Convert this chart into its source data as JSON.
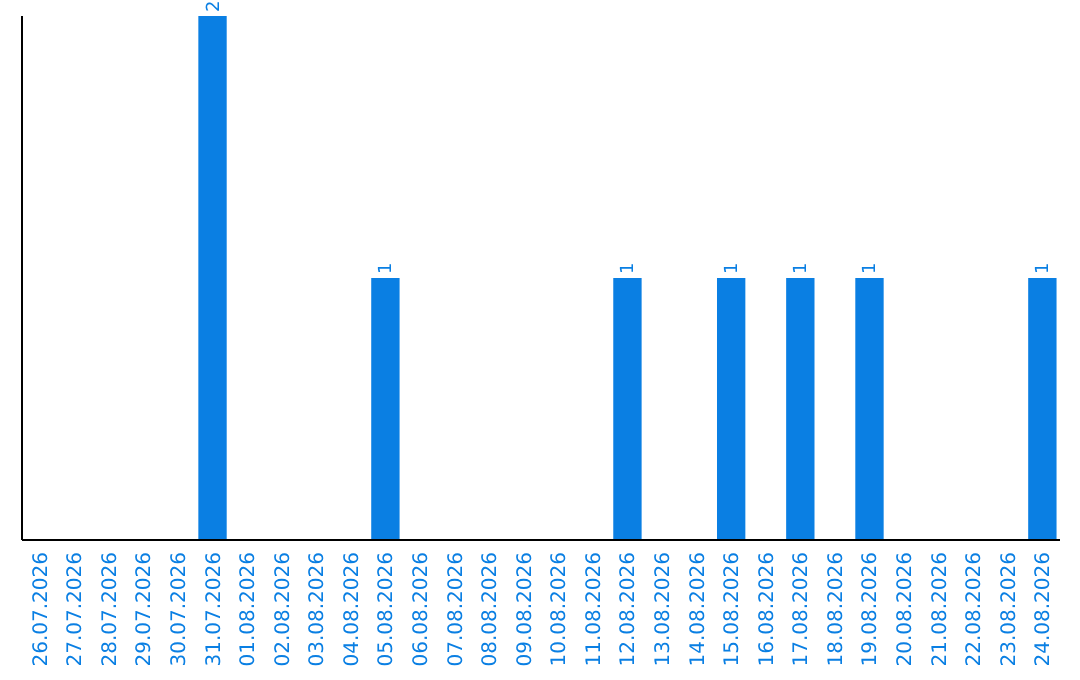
{
  "chart_data": {
    "type": "bar",
    "categories": [
      "26.07.2026",
      "27.07.2026",
      "28.07.2026",
      "29.07.2026",
      "30.07.2026",
      "31.07.2026",
      "01.08.2026",
      "02.08.2026",
      "03.08.2026",
      "04.08.2026",
      "05.08.2026",
      "06.08.2026",
      "07.08.2026",
      "08.08.2026",
      "09.08.2026",
      "10.08.2026",
      "11.08.2026",
      "12.08.2026",
      "13.08.2026",
      "14.08.2026",
      "15.08.2026",
      "16.08.2026",
      "17.08.2026",
      "18.08.2026",
      "19.08.2026",
      "20.08.2026",
      "21.08.2026",
      "22.08.2026",
      "23.08.2026",
      "24.08.2026"
    ],
    "values": [
      0,
      0,
      0,
      0,
      0,
      2,
      0,
      0,
      0,
      0,
      1,
      0,
      0,
      0,
      0,
      0,
      0,
      1,
      0,
      0,
      1,
      0,
      1,
      0,
      1,
      0,
      0,
      0,
      0,
      1
    ],
    "value_labels": [
      null,
      null,
      null,
      null,
      null,
      "2",
      null,
      null,
      null,
      null,
      "1",
      null,
      null,
      null,
      null,
      null,
      null,
      "1",
      null,
      null,
      "1",
      null,
      "1",
      null,
      "1",
      null,
      null,
      null,
      null,
      "1"
    ],
    "color": "#0a7fe3",
    "ylim": [
      0,
      2
    ],
    "tick_labels": "x"
  }
}
